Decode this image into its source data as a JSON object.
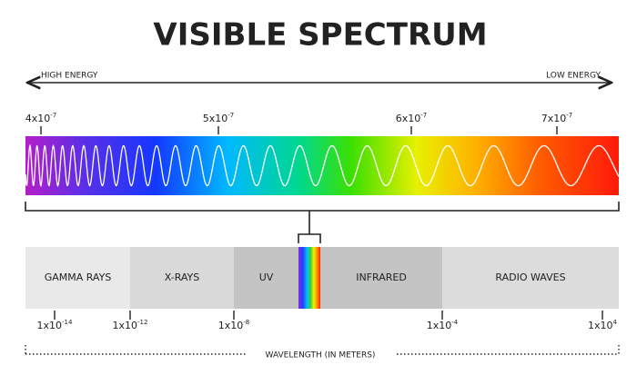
{
  "title": "VISIBLE SPECTRUM",
  "energy_arrow": {
    "left": "HIGH ENERGY",
    "right": "LOW ENERGY"
  },
  "visible_scale": {
    "ticks": [
      {
        "base": "4x10",
        "exponent": "-7"
      },
      {
        "base": "5x10",
        "exponent": "-7"
      },
      {
        "base": "6x10",
        "exponent": "-7"
      },
      {
        "base": "7x10",
        "exponent": "-7"
      }
    ]
  },
  "bands": [
    "GAMMA RAYS",
    "X-RAYS",
    "UV",
    "INFRARED",
    "RADIO WAVES"
  ],
  "wavelength_scale": {
    "ticks": [
      {
        "base": "1x10",
        "exponent": "-14"
      },
      {
        "base": "1x10",
        "exponent": "-12"
      },
      {
        "base": "1x10",
        "exponent": "-8"
      },
      {
        "base": "1x10",
        "exponent": "-4"
      },
      {
        "base": "1x10",
        "exponent": "4"
      }
    ],
    "label": "WAVELENGTH (IN METERS)"
  }
}
